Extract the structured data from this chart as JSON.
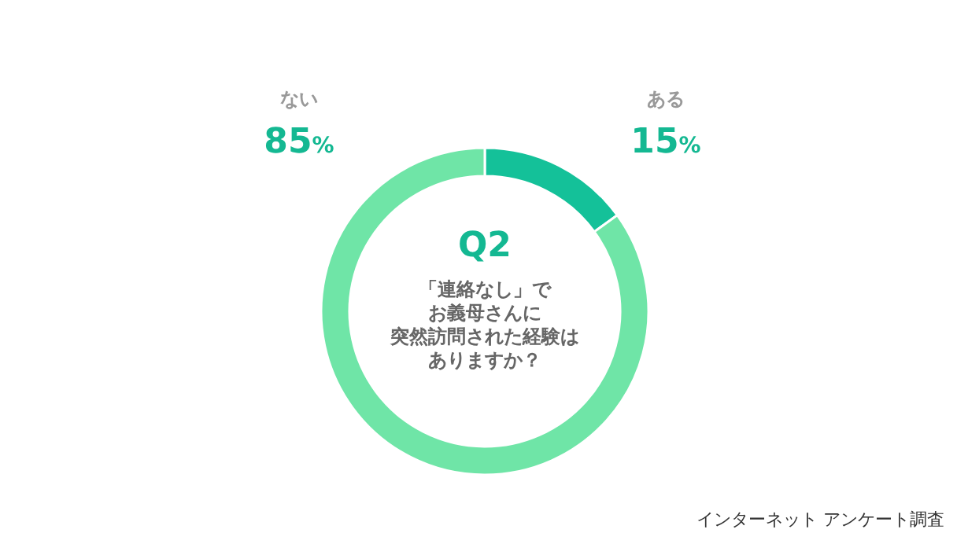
{
  "chart_data": {
    "type": "donut",
    "title": "Q2",
    "categories": [
      "ある",
      "ない"
    ],
    "values": [
      15,
      85
    ],
    "colors": [
      "#14c199",
      "#6fe5a7"
    ],
    "value_labels": [
      "15%",
      "85%"
    ],
    "annotations": [
      "「連絡なし」で",
      "お義母さんに",
      "突然訪問された経験は",
      "ありますか？",
      "インターネット アンケート調査"
    ]
  }
}
